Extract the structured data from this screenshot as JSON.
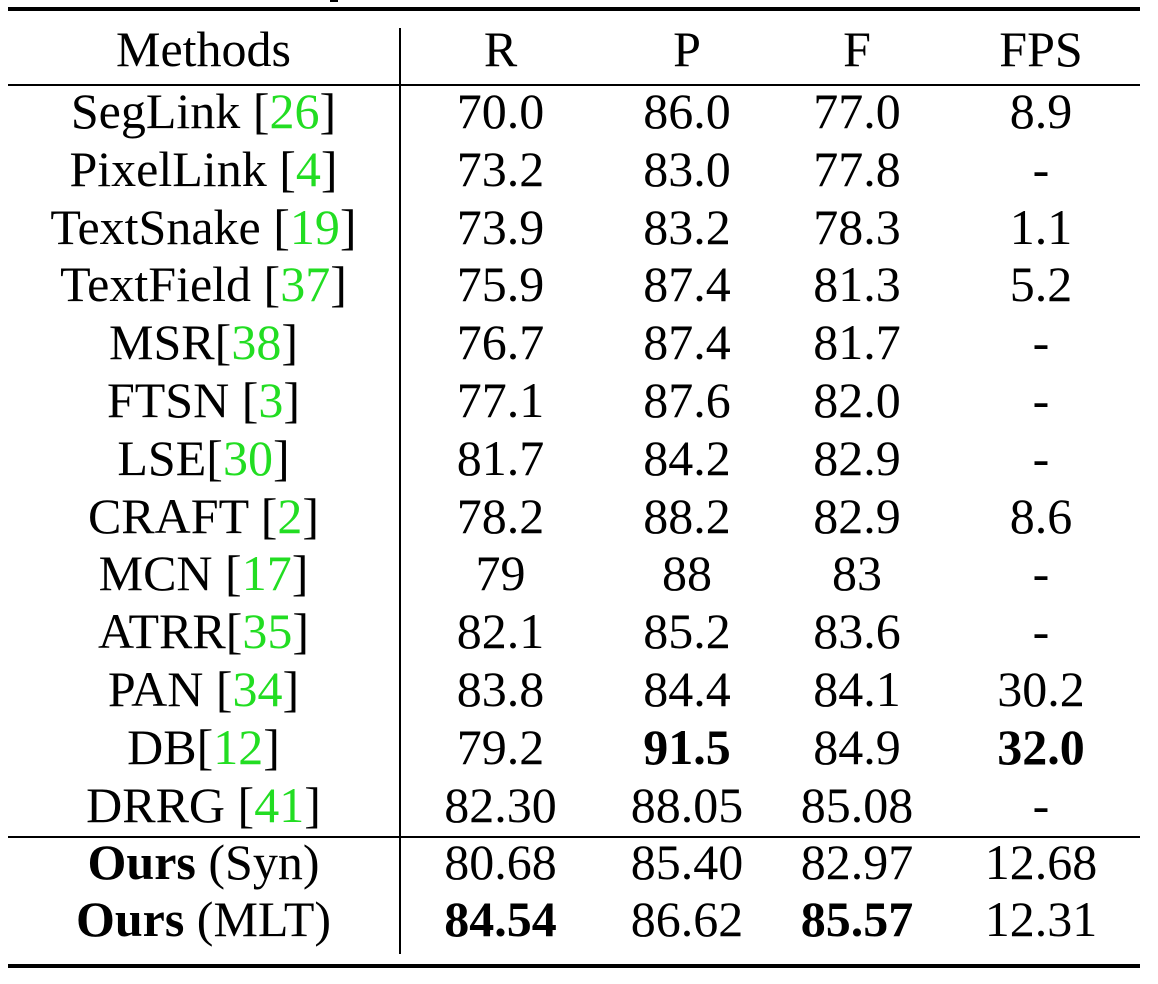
{
  "table": {
    "headers": [
      "Methods",
      "R",
      "P",
      "F",
      "FPS"
    ],
    "rows": [
      {
        "method": "SegLink",
        "sep": " ",
        "ref": "26",
        "suffix": "",
        "R": "70.0",
        "P": "86.0",
        "F": "77.0",
        "FPS": "8.9"
      },
      {
        "method": "PixelLink",
        "sep": " ",
        "ref": "4",
        "suffix": "",
        "R": "73.2",
        "P": "83.0",
        "F": "77.8",
        "FPS": "-"
      },
      {
        "method": "TextSnake",
        "sep": " ",
        "ref": "19",
        "suffix": "",
        "R": "73.9",
        "P": "83.2",
        "F": "78.3",
        "FPS": "1.1"
      },
      {
        "method": "TextField",
        "sep": " ",
        "ref": "37",
        "suffix": "",
        "R": "75.9",
        "P": "87.4",
        "F": "81.3",
        "FPS": "5.2"
      },
      {
        "method": "MSR",
        "sep": "",
        "ref": "38",
        "suffix": "",
        "R": "76.7",
        "P": "87.4",
        "F": "81.7",
        "FPS": "-"
      },
      {
        "method": "FTSN",
        "sep": " ",
        "ref": "3",
        "suffix": "",
        "R": "77.1",
        "P": "87.6",
        "F": "82.0",
        "FPS": "-"
      },
      {
        "method": "LSE",
        "sep": "",
        "ref": "30",
        "suffix": "",
        "R": "81.7",
        "P": "84.2",
        "F": "82.9",
        "FPS": "-"
      },
      {
        "method": "CRAFT",
        "sep": " ",
        "ref": "2",
        "suffix": "",
        "R": "78.2",
        "P": "88.2",
        "F": "82.9",
        "FPS": "8.6"
      },
      {
        "method": "MCN",
        "sep": " ",
        "ref": "17",
        "suffix": "",
        "R": "79",
        "P": "88",
        "F": "83",
        "FPS": "-"
      },
      {
        "method": "ATRR",
        "sep": "",
        "ref": "35",
        "suffix": "",
        "R": "82.1",
        "P": "85.2",
        "F": "83.6",
        "FPS": "-"
      },
      {
        "method": "PAN",
        "sep": " ",
        "ref": "34",
        "suffix": "",
        "R": "83.8",
        "P": "84.4",
        "F": "84.1",
        "FPS": "30.2"
      },
      {
        "method": "DB",
        "sep": "",
        "ref": "12",
        "suffix": "",
        "R": "79.2",
        "P": "91.5",
        "F": "84.9",
        "FPS": "32.0",
        "bold": [
          "P",
          "FPS"
        ]
      },
      {
        "method": "DRRG",
        "sep": " ",
        "ref": "41",
        "suffix": "",
        "R": "82.30",
        "P": "88.05",
        "F": "85.08",
        "FPS": "-"
      }
    ],
    "ours": [
      {
        "method": "Ours",
        "suffix": " (Syn)",
        "R": "80.68",
        "P": "85.40",
        "F": "82.97",
        "FPS": "12.68"
      },
      {
        "method": "Ours",
        "suffix": " (MLT)",
        "R": "84.54",
        "P": "86.62",
        "F": "85.57",
        "FPS": "12.31",
        "bold": [
          "R",
          "F"
        ]
      }
    ]
  }
}
